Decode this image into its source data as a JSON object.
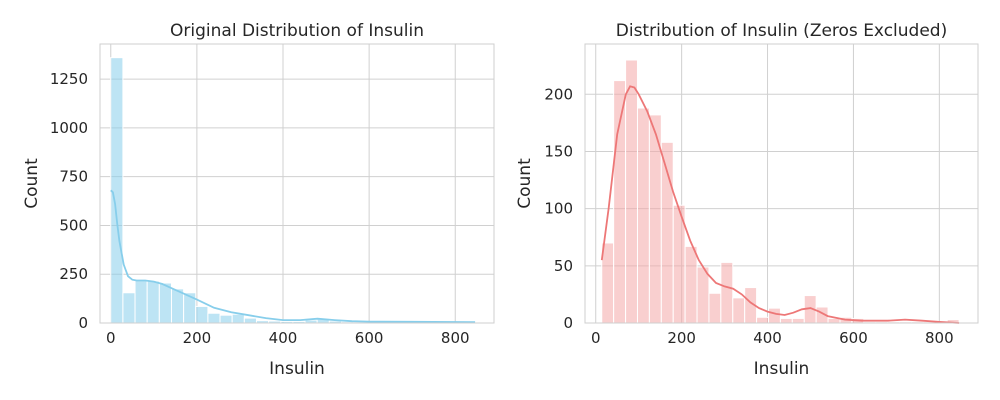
{
  "chart_data": [
    {
      "type": "bar",
      "title": "Original Distribution of Insulin",
      "xlabel": "Insulin",
      "ylabel": "Count",
      "xlim": [
        -25,
        890
      ],
      "ylim": [
        0,
        1430
      ],
      "xticks": [
        0,
        200,
        400,
        600,
        800
      ],
      "yticks": [
        0,
        250,
        500,
        750,
        1000,
        1250
      ],
      "grid": true,
      "bar_color": "#87ceeb",
      "kde_color": "#87ceeb",
      "bin_edges": [
        0,
        28.2,
        56.4,
        84.6,
        112.8,
        141,
        169.2,
        197.4,
        225.6,
        253.8,
        282,
        310.2,
        338.4,
        366.6,
        394.8,
        423,
        451.2,
        479.4,
        507.6,
        535.8,
        564,
        592.2,
        620.4,
        648.6,
        676.8,
        705,
        733.2,
        761.4,
        789.6,
        817.8,
        846
      ],
      "values": [
        1360,
        155,
        220,
        215,
        205,
        175,
        155,
        85,
        50,
        40,
        45,
        25,
        12,
        10,
        8,
        8,
        15,
        20,
        10,
        6,
        5,
        6,
        4,
        4,
        3,
        3,
        4,
        3,
        2,
        3
      ],
      "kde": {
        "x": [
          0,
          5,
          10,
          15,
          20,
          30,
          40,
          50,
          60,
          80,
          100,
          120,
          140,
          160,
          180,
          200,
          240,
          280,
          320,
          360,
          400,
          440,
          480,
          520,
          560,
          600,
          700,
          846
        ],
        "y": [
          680,
          670,
          610,
          510,
          420,
          300,
          240,
          222,
          218,
          218,
          212,
          200,
          180,
          160,
          140,
          120,
          78,
          55,
          40,
          25,
          15,
          15,
          22,
          15,
          9,
          7,
          6,
          4
        ]
      }
    },
    {
      "type": "bar",
      "title": "Distribution of Insulin (Zeros Excluded)",
      "xlabel": "Insulin",
      "ylabel": "Count",
      "xlim": [
        -25,
        890
      ],
      "ylim": [
        0,
        244
      ],
      "xticks": [
        0,
        200,
        400,
        600,
        800
      ],
      "yticks": [
        0,
        50,
        100,
        150,
        200
      ],
      "grid": true,
      "bar_color": "#f4a8a8",
      "kde_color": "#ed7777",
      "bin_edges": [
        14,
        41.7,
        69.5,
        97.2,
        124.9,
        152.7,
        180.4,
        208.1,
        235.9,
        263.6,
        291.3,
        319.1,
        346.8,
        374.5,
        402.3,
        430,
        457.7,
        485.5,
        513.2,
        540.9,
        568.7,
        596.4,
        624.1,
        651.9,
        679.6,
        707.3,
        735.1,
        762.8,
        790.5,
        818.3,
        846
      ],
      "values": [
        70,
        212,
        230,
        188,
        182,
        158,
        103,
        67,
        49,
        26,
        53,
        22,
        31,
        5,
        13,
        4,
        4,
        24,
        14,
        4,
        5,
        4,
        1,
        1,
        1,
        1,
        1,
        1,
        1,
        3
      ],
      "kde": {
        "x": [
          14,
          30,
          50,
          70,
          80,
          90,
          100,
          120,
          140,
          160,
          180,
          200,
          220,
          240,
          260,
          280,
          300,
          320,
          340,
          360,
          380,
          400,
          420,
          440,
          460,
          480,
          500,
          520,
          540,
          580,
          620,
          680,
          720,
          760,
          800,
          846
        ],
        "y": [
          55,
          100,
          165,
          200,
          207,
          206,
          200,
          185,
          165,
          140,
          115,
          93,
          72,
          55,
          43,
          35,
          32,
          30,
          25,
          18,
          13,
          10,
          8,
          7,
          9,
          12,
          13,
          10,
          6,
          3,
          2,
          2,
          3,
          2,
          1,
          0
        ]
      }
    }
  ]
}
